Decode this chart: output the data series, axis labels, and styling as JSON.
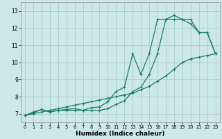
{
  "xlabel": "Humidex (Indice chaleur)",
  "bg_color": "#cce8e8",
  "grid_color": "#aacccc",
  "line_color": "#1a7a6a",
  "xlim": [
    -0.5,
    23.5
  ],
  "ylim": [
    6.5,
    13.5
  ],
  "xticks": [
    0,
    1,
    2,
    3,
    4,
    5,
    6,
    7,
    8,
    9,
    10,
    11,
    12,
    13,
    14,
    15,
    16,
    17,
    18,
    19,
    20,
    21,
    22,
    23
  ],
  "yticks": [
    7,
    8,
    9,
    10,
    11,
    12,
    13
  ],
  "series1_x": [
    0,
    1,
    2,
    3,
    4,
    5,
    6,
    7,
    8,
    9,
    10,
    11,
    12,
    13,
    14,
    15,
    16,
    17,
    18,
    19,
    20,
    21,
    22,
    23
  ],
  "series1_y": [
    6.9,
    7.0,
    7.1,
    7.2,
    7.3,
    7.4,
    7.5,
    7.6,
    7.7,
    7.8,
    7.9,
    8.0,
    8.1,
    8.2,
    8.4,
    8.6,
    8.9,
    9.2,
    9.6,
    10.0,
    10.2,
    10.3,
    10.4,
    10.5
  ],
  "series2_x": [
    0,
    1,
    2,
    3,
    4,
    5,
    6,
    7,
    8,
    9,
    10,
    11,
    12,
    13,
    14,
    15,
    16,
    17,
    18,
    19,
    20,
    21,
    22,
    23
  ],
  "series2_y": [
    6.9,
    7.1,
    7.25,
    7.1,
    7.2,
    7.2,
    7.2,
    7.2,
    7.2,
    7.2,
    7.3,
    7.55,
    7.75,
    8.3,
    8.55,
    9.3,
    10.5,
    12.5,
    12.5,
    12.5,
    12.25,
    11.75,
    11.75,
    10.5
  ],
  "series3_x": [
    0,
    1,
    2,
    3,
    4,
    5,
    6,
    7,
    8,
    9,
    10,
    11,
    12,
    13,
    14,
    15,
    16,
    17,
    18,
    19,
    20,
    21,
    22,
    23
  ],
  "series3_y": [
    6.9,
    7.05,
    7.25,
    7.1,
    7.2,
    7.25,
    7.3,
    7.2,
    7.35,
    7.4,
    7.7,
    8.3,
    8.55,
    10.5,
    9.3,
    10.5,
    12.5,
    12.5,
    12.75,
    12.5,
    12.5,
    11.75,
    11.75,
    10.5
  ]
}
